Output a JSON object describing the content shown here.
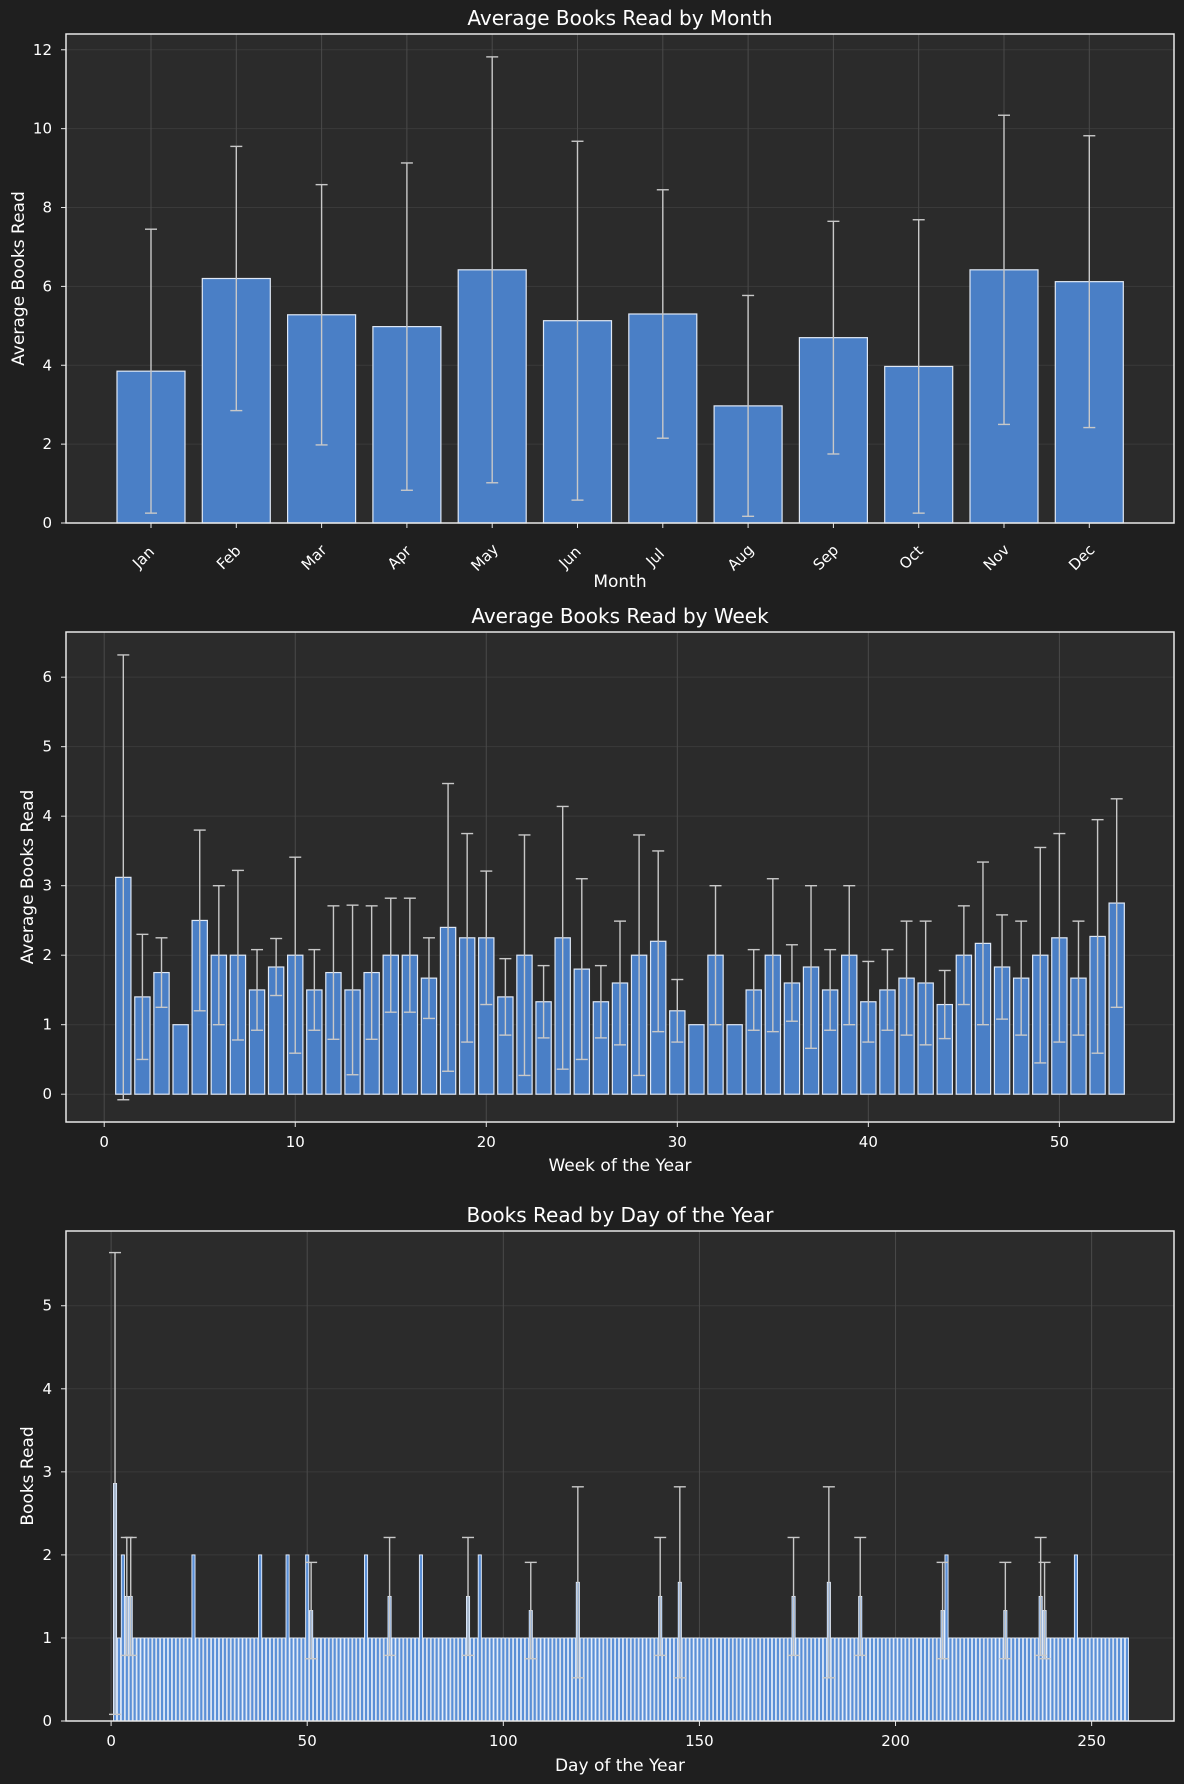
{
  "chart_data": [
    {
      "type": "bar",
      "title": "Average Books Read by Month",
      "xlabel": "Month",
      "ylabel": "Average Books Read",
      "ylim": [
        0,
        12.4
      ],
      "yticks": [
        0,
        2,
        4,
        6,
        8,
        10,
        12
      ],
      "grid": true,
      "categories": [
        "Jan",
        "Feb",
        "Mar",
        "Apr",
        "May",
        "Jun",
        "Jul",
        "Aug",
        "Sep",
        "Oct",
        "Nov",
        "Dec"
      ],
      "values": [
        3.85,
        6.2,
        5.28,
        4.98,
        6.42,
        5.13,
        5.3,
        2.97,
        4.7,
        3.97,
        6.42,
        6.12
      ],
      "errors": [
        3.6,
        3.35,
        3.3,
        4.15,
        5.4,
        4.55,
        3.15,
        2.8,
        2.95,
        3.72,
        3.92,
        3.7
      ]
    },
    {
      "type": "bar",
      "title": "Average Books Read by Week",
      "xlabel": "Week of the Year",
      "ylabel": "Average Books Read",
      "xlim": [
        -2,
        56
      ],
      "ylim": [
        -0.4,
        6.65
      ],
      "xticks": [
        0,
        10,
        20,
        30,
        40,
        50
      ],
      "yticks": [
        0,
        1,
        2,
        3,
        4,
        5,
        6
      ],
      "grid": true,
      "x": [
        1,
        2,
        3,
        4,
        5,
        6,
        7,
        8,
        9,
        10,
        11,
        12,
        13,
        14,
        15,
        16,
        17,
        18,
        19,
        20,
        21,
        22,
        23,
        24,
        25,
        26,
        27,
        28,
        29,
        30,
        31,
        32,
        33,
        34,
        35,
        36,
        37,
        38,
        39,
        40,
        41,
        42,
        43,
        44,
        45,
        46,
        47,
        48,
        49,
        50,
        51,
        52,
        53
      ],
      "values": [
        3.12,
        1.4,
        1.75,
        1.0,
        2.5,
        2.0,
        2.0,
        1.5,
        1.83,
        2.0,
        1.5,
        1.75,
        1.5,
        1.75,
        2.0,
        2.0,
        1.67,
        2.4,
        2.25,
        2.25,
        1.4,
        2.0,
        1.33,
        2.25,
        1.8,
        1.33,
        1.6,
        2.0,
        2.2,
        1.2,
        1.0,
        2.0,
        1.0,
        1.5,
        2.0,
        1.6,
        1.83,
        1.5,
        2.0,
        1.33,
        1.5,
        1.67,
        1.6,
        1.29,
        2.0,
        2.17,
        1.83,
        1.67,
        2.0,
        2.25,
        1.67,
        2.27,
        2.75
      ],
      "errors": [
        3.2,
        0.9,
        0.5,
        0.0,
        1.3,
        1.0,
        1.22,
        0.58,
        0.41,
        1.41,
        0.58,
        0.96,
        1.22,
        0.96,
        0.82,
        0.82,
        0.58,
        2.07,
        1.5,
        0.96,
        0.55,
        1.73,
        0.52,
        1.89,
        1.3,
        0.52,
        0.89,
        1.73,
        1.3,
        0.45,
        0.0,
        1.0,
        0.0,
        0.58,
        1.1,
        0.55,
        1.17,
        0.58,
        1.0,
        0.58,
        0.58,
        0.82,
        0.89,
        0.49,
        0.71,
        1.17,
        0.75,
        0.82,
        1.55,
        1.5,
        0.82,
        1.68,
        1.5
      ]
    },
    {
      "type": "bar",
      "title": "Books Read by Day of the Year",
      "xlabel": "Day of the Year",
      "ylabel": "Books Read",
      "xlim": [
        -11.5,
        271
      ],
      "ylim": [
        0,
        5.9
      ],
      "xticks": [
        0,
        50,
        100,
        150,
        200,
        250
      ],
      "yticks": [
        0,
        1,
        2,
        3,
        4,
        5
      ],
      "grid": true,
      "x_range": [
        1,
        259
      ],
      "base_value": 1,
      "highlights": [
        {
          "x": 1,
          "value": 2.86,
          "error": 2.78
        },
        {
          "x": 3,
          "value": 2.0,
          "error": 0.0
        },
        {
          "x": 4,
          "value": 1.5,
          "error": 0.71
        },
        {
          "x": 5,
          "value": 1.5,
          "error": 0.71
        },
        {
          "x": 21,
          "value": 2.0,
          "error": 0.0
        },
        {
          "x": 38,
          "value": 2.0,
          "error": 0.0
        },
        {
          "x": 45,
          "value": 2.0,
          "error": 0.0
        },
        {
          "x": 50,
          "value": 2.0,
          "error": 0.0
        },
        {
          "x": 51,
          "value": 1.33,
          "error": 0.58
        },
        {
          "x": 65,
          "value": 2.0,
          "error": 0.0
        },
        {
          "x": 71,
          "value": 1.5,
          "error": 0.71
        },
        {
          "x": 79,
          "value": 2.0,
          "error": 0.0
        },
        {
          "x": 91,
          "value": 1.5,
          "error": 0.71
        },
        {
          "x": 94,
          "value": 2.0,
          "error": 0.0
        },
        {
          "x": 107,
          "value": 1.33,
          "error": 0.58
        },
        {
          "x": 119,
          "value": 1.67,
          "error": 1.15
        },
        {
          "x": 140,
          "value": 1.5,
          "error": 0.71
        },
        {
          "x": 145,
          "value": 1.67,
          "error": 1.15
        },
        {
          "x": 174,
          "value": 1.5,
          "error": 0.71
        },
        {
          "x": 183,
          "value": 1.67,
          "error": 1.15
        },
        {
          "x": 191,
          "value": 1.5,
          "error": 0.71
        },
        {
          "x": 212,
          "value": 1.33,
          "error": 0.58
        },
        {
          "x": 213,
          "value": 2.0,
          "error": 0.0
        },
        {
          "x": 228,
          "value": 1.33,
          "error": 0.58
        },
        {
          "x": 237,
          "value": 1.5,
          "error": 0.71
        },
        {
          "x": 238,
          "value": 1.33,
          "error": 0.58
        },
        {
          "x": 246,
          "value": 2.0,
          "error": 0.0
        }
      ]
    }
  ],
  "colors": {
    "background": "#1f1f1f",
    "plot_background": "#2b2b2b",
    "bar_fill": "#4a7fc6",
    "bar_edge": "#dfe8f5",
    "error_bar": "#c8c8c8",
    "text": "#ffffff"
  }
}
